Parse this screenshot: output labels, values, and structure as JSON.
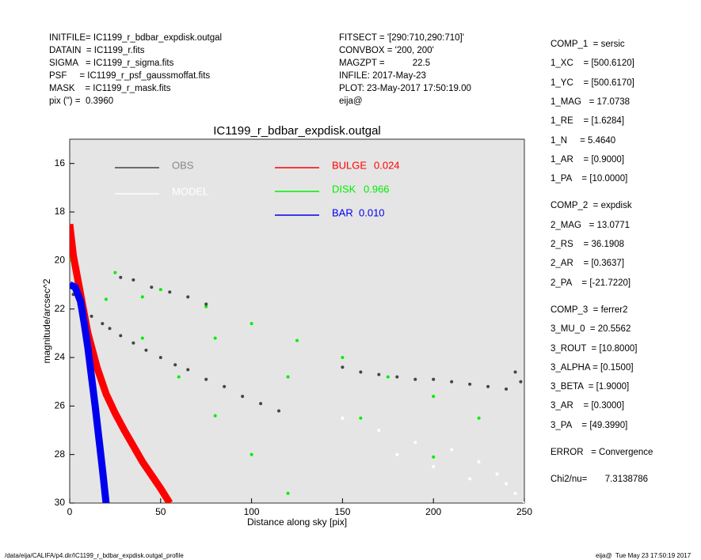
{
  "header": {
    "left": [
      "INITFILE= IC1199_r_bdbar_expdisk.outgal",
      "DATAIN  = IC1199_r.fits",
      "SIGMA   = IC1199_r_sigma.fits",
      "PSF     = IC1199_r_psf_gaussmoffat.fits",
      "MASK    = IC1199_r_mask.fits",
      "pix (\") =  0.3960"
    ],
    "middle": [
      "FITSECT = '[290:710,290:710]'",
      "CONVBOX = '200, 200'",
      "MAGZPT =           22.5",
      "INFILE: 2017-May-23",
      "PLOT: 23-May-2017 17:50:19.00",
      "eija@"
    ]
  },
  "params": [
    [
      "COMP_1  = sersic",
      "1_XC    = [500.6120]",
      "1_YC    = [500.6170]",
      "1_MAG   = 17.0738",
      "1_RE    = [1.6284]",
      "1_N     = 5.4640",
      "1_AR    = [0.9000]",
      "1_PA    = [10.0000]"
    ],
    [
      "COMP_2  = expdisk",
      "2_MAG   = 13.0771",
      "2_RS    = 36.1908",
      "2_AR    = [0.3637]",
      "2_PA    = [-21.7220]"
    ],
    [
      "COMP_3  = ferrer2",
      "3_MU_0  = 20.5562",
      "3_ROUT  = [10.8000]",
      "3_ALPHA = [0.1500]",
      "3_BETA  = [1.9000]",
      "3_AR    = [0.3000]",
      "3_PA    = [49.3990]"
    ],
    [
      "ERROR   = Convergence"
    ],
    [
      "Chi2/nu=       7.3138786"
    ]
  ],
  "footer": {
    "left": "/data/eija/CALIFA/p4.dir/IC1199_r_bdbar_expdisk.outgal_profile",
    "right": "eija@  Tue May 23 17:50:19 2017"
  },
  "chart_data": {
    "type": "scatter",
    "title": "IC1199_r_bdbar_expdisk.outgal",
    "x_label": "Distance along sky [pix]",
    "y_label": "magnitude/arcsec^2",
    "xlim": [
      0,
      250
    ],
    "xticks": [
      0,
      50,
      100,
      150,
      200,
      250
    ],
    "ylim": [
      30,
      15
    ],
    "yticks": [
      16,
      18,
      20,
      22,
      24,
      26,
      28,
      30
    ],
    "y_inverted": true,
    "background": "#e5e5e5",
    "series": [
      {
        "name": "OBS",
        "color": "#444444",
        "marker": "points",
        "x": [
          2,
          5,
          8,
          12,
          18,
          22,
          28,
          35,
          42,
          50,
          58,
          65,
          75,
          85,
          95,
          105,
          115,
          28,
          35,
          45,
          55,
          65,
          75,
          160,
          170,
          180,
          190,
          200,
          210,
          220,
          230,
          240,
          248,
          245,
          150
        ],
        "values": [
          21.4,
          21.8,
          22,
          22.3,
          22.6,
          22.8,
          23.1,
          23.4,
          23.7,
          24,
          24.3,
          24.5,
          24.9,
          25.2,
          25.6,
          25.9,
          26.2,
          20.7,
          20.8,
          21.1,
          21.3,
          21.5,
          21.8,
          24.6,
          24.7,
          24.8,
          24.9,
          24.9,
          25,
          25.1,
          25.2,
          25.3,
          25,
          24.6,
          24.4
        ]
      },
      {
        "name": "MODEL",
        "color": "#ffffff",
        "marker": "points",
        "x": [
          150,
          170,
          190,
          210,
          225,
          235,
          240,
          245,
          250,
          200,
          220,
          180
        ],
        "values": [
          26.5,
          27,
          27.5,
          27.8,
          28.3,
          28.8,
          29.2,
          29.6,
          30,
          28.5,
          29,
          28
        ]
      },
      {
        "name": "BULGE",
        "fraction": "0.024",
        "color": "#ff0000",
        "marker": "line",
        "x": [
          0,
          2,
          5,
          8,
          10,
          15,
          20,
          25,
          30,
          40,
          50,
          55
        ],
        "values": [
          18.5,
          19.8,
          21,
          22.2,
          23,
          24.4,
          25.5,
          26.3,
          27,
          28.3,
          29.4,
          30
        ]
      },
      {
        "name": "DISK",
        "fraction": "0.966",
        "color": "#00ee00",
        "marker": "points",
        "x": [
          0,
          25,
          50,
          75,
          100,
          125,
          150,
          175,
          200,
          225,
          0,
          20,
          40,
          60,
          80,
          100,
          120,
          0,
          40,
          80,
          120,
          160,
          200
        ],
        "values": [
          19.8,
          20.5,
          21.2,
          21.9,
          22.6,
          23.3,
          24,
          24.8,
          25.6,
          26.5,
          20,
          21.6,
          23.2,
          24.8,
          26.4,
          28,
          29.6,
          19.9,
          21.5,
          23.2,
          24.8,
          26.5,
          28.1
        ]
      },
      {
        "name": "BAR",
        "fraction": "0.010",
        "color": "#0000ee",
        "marker": "line",
        "x": [
          0,
          3,
          6,
          8,
          10,
          12,
          14,
          16,
          18,
          20
        ],
        "values": [
          21,
          21.1,
          21.7,
          22.6,
          23.6,
          24.8,
          26,
          27.3,
          28.6,
          30
        ]
      }
    ]
  }
}
